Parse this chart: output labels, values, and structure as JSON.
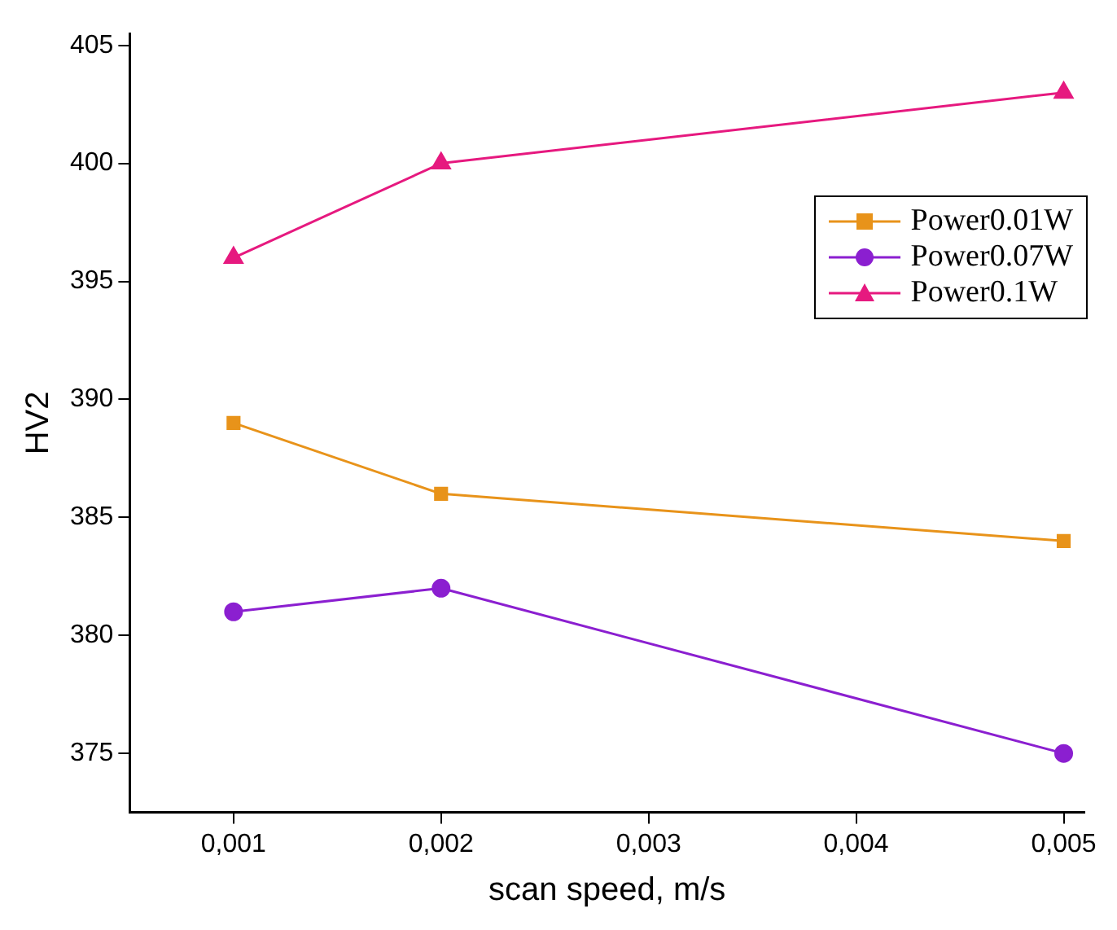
{
  "chart_data": {
    "type": "line",
    "xlabel": "scan speed, m/s",
    "ylabel": "HV2",
    "x": [
      0.001,
      0.002,
      0.005
    ],
    "series": [
      {
        "name": "Power0.01W",
        "color": "#e8931a",
        "values": [
          389,
          386,
          384
        ],
        "marker": "square"
      },
      {
        "name": "Power0.07W",
        "color": "#8b1fd0",
        "values": [
          381,
          382,
          375
        ],
        "marker": "circle"
      },
      {
        "name": "Power0.1W",
        "color": "#e6197f",
        "values": [
          396,
          400,
          403
        ],
        "marker": "triangle"
      }
    ],
    "xlim": [
      0.0005,
      0.0051
    ],
    "xticks": [
      {
        "value": 0.001,
        "label": "0,001"
      },
      {
        "value": 0.002,
        "label": "0,002"
      },
      {
        "value": 0.003,
        "label": "0,003"
      },
      {
        "value": 0.004,
        "label": "0,004"
      },
      {
        "value": 0.005,
        "label": "0,005"
      }
    ],
    "ylim": [
      372.5,
      405.5
    ],
    "yticks": [
      375,
      380,
      385,
      390,
      395,
      400,
      405
    ],
    "grid": false,
    "legend": "top right",
    "line_style": "solid"
  }
}
